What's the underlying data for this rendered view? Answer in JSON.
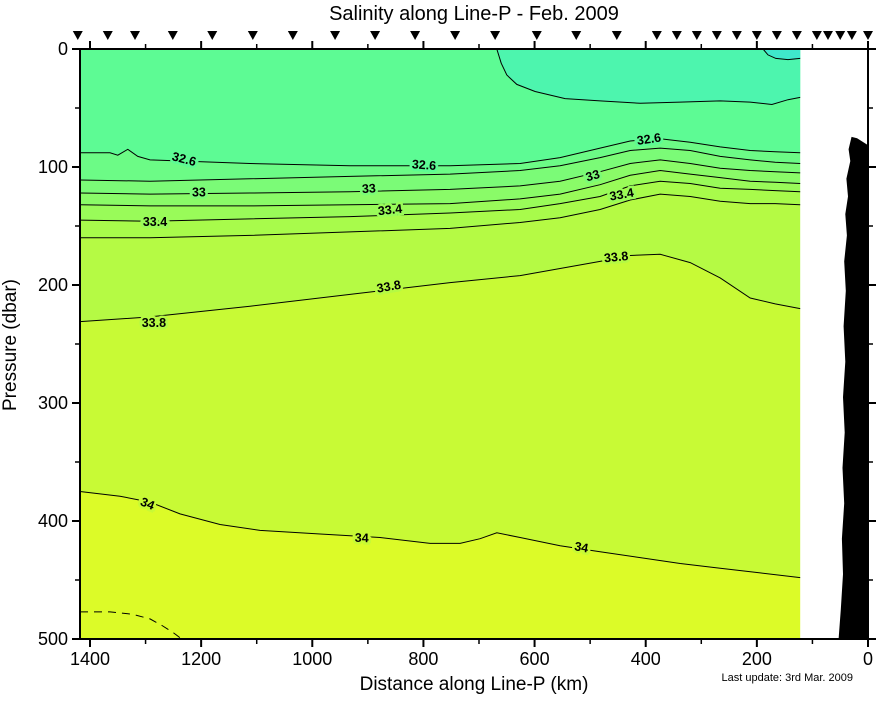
{
  "chart_data": {
    "type": "filled-contour-section",
    "title": "Salinity along Line-P - Feb. 2009",
    "xlabel": "Distance along Line-P (km)",
    "ylabel": "Pressure (dbar)",
    "attribution": "Last update: 3rd Mar. 2009",
    "contour_interval": 0.2,
    "labeled_levels": [
      32.6,
      33,
      33.4,
      33.8,
      34
    ],
    "x_axis": {
      "unit": "km",
      "min": 0,
      "max": 1418,
      "reversed": true,
      "major_ticks": [
        1400,
        1200,
        1000,
        800,
        600,
        400,
        200,
        0
      ],
      "minor_ticks": [
        1300,
        1100,
        900,
        700,
        500,
        300,
        100
      ]
    },
    "y_axis": {
      "unit": "dbar",
      "min": 0,
      "max": 500,
      "inverted": true,
      "major_ticks": [
        0,
        100,
        200,
        300,
        400,
        500
      ],
      "minor_ticks": [
        50,
        150,
        250,
        350,
        450
      ]
    },
    "fill_extent_km": [
      122,
      1418
    ],
    "station_markers_km": [
      1422,
      1368,
      1319,
      1251,
      1180,
      1107,
      1035,
      959,
      887,
      815,
      743,
      671,
      596,
      525,
      452,
      380,
      344,
      308,
      272,
      236,
      200,
      164,
      128,
      92,
      72,
      50,
      29,
      0
    ],
    "lines": {
      "surface": {
        "stroke": false,
        "points": [
          [
            1418,
            0
          ],
          [
            122,
            0
          ]
        ]
      },
      "32.6": {
        "stroke": true,
        "dashed": false,
        "points": [
          [
            1418,
            88
          ],
          [
            1364,
            88
          ],
          [
            1350,
            90
          ],
          [
            1332,
            85
          ],
          [
            1314,
            91
          ],
          [
            1292,
            94
          ],
          [
            1112,
            97
          ],
          [
            932,
            99
          ],
          [
            752,
            99
          ],
          [
            626,
            97
          ],
          [
            554,
            92
          ],
          [
            482,
            84
          ],
          [
            428,
            78
          ],
          [
            374,
            76
          ],
          [
            320,
            79
          ],
          [
            266,
            83
          ],
          [
            212,
            86
          ],
          [
            167,
            87
          ],
          [
            122,
            88
          ]
        ]
      },
      "32.8": {
        "stroke": true,
        "dashed": false,
        "points": [
          [
            1418,
            111
          ],
          [
            1292,
            112
          ],
          [
            1112,
            110
          ],
          [
            932,
            108
          ],
          [
            752,
            106
          ],
          [
            626,
            103
          ],
          [
            554,
            99
          ],
          [
            482,
            92
          ],
          [
            428,
            86
          ],
          [
            374,
            84
          ],
          [
            320,
            86
          ],
          [
            266,
            91
          ],
          [
            212,
            94
          ],
          [
            167,
            96
          ],
          [
            122,
            97
          ]
        ]
      },
      "33": {
        "stroke": true,
        "dashed": false,
        "points": [
          [
            1418,
            122
          ],
          [
            1292,
            123
          ],
          [
            1112,
            122
          ],
          [
            932,
            121
          ],
          [
            752,
            119
          ],
          [
            626,
            116
          ],
          [
            554,
            112
          ],
          [
            482,
            104
          ],
          [
            428,
            97
          ],
          [
            374,
            94
          ],
          [
            320,
            97
          ],
          [
            266,
            101
          ],
          [
            212,
            103
          ],
          [
            167,
            104
          ],
          [
            122,
            105
          ]
        ]
      },
      "33.2": {
        "stroke": true,
        "dashed": false,
        "points": [
          [
            1418,
            132
          ],
          [
            1292,
            133
          ],
          [
            1112,
            133
          ],
          [
            932,
            132
          ],
          [
            752,
            131
          ],
          [
            626,
            127
          ],
          [
            554,
            123
          ],
          [
            482,
            115
          ],
          [
            428,
            107
          ],
          [
            374,
            103
          ],
          [
            320,
            106
          ],
          [
            266,
            109
          ],
          [
            212,
            112
          ],
          [
            167,
            113
          ],
          [
            122,
            114
          ]
        ]
      },
      "33.4": {
        "stroke": true,
        "dashed": false,
        "points": [
          [
            1418,
            145
          ],
          [
            1292,
            146
          ],
          [
            1112,
            144
          ],
          [
            932,
            142
          ],
          [
            752,
            139
          ],
          [
            626,
            136
          ],
          [
            554,
            131
          ],
          [
            482,
            125
          ],
          [
            428,
            116
          ],
          [
            374,
            112
          ],
          [
            320,
            114
          ],
          [
            266,
            118
          ],
          [
            212,
            119
          ],
          [
            167,
            120
          ],
          [
            122,
            121
          ]
        ]
      },
      "33.6": {
        "stroke": true,
        "dashed": false,
        "points": [
          [
            1418,
            160
          ],
          [
            1292,
            160
          ],
          [
            1112,
            158
          ],
          [
            932,
            155
          ],
          [
            752,
            152
          ],
          [
            626,
            147
          ],
          [
            554,
            143
          ],
          [
            482,
            136
          ],
          [
            428,
            128
          ],
          [
            374,
            123
          ],
          [
            320,
            125
          ],
          [
            266,
            129
          ],
          [
            212,
            131
          ],
          [
            167,
            131
          ],
          [
            122,
            132
          ]
        ]
      },
      "33.8": {
        "stroke": true,
        "dashed": false,
        "points": [
          [
            1418,
            231
          ],
          [
            1292,
            227
          ],
          [
            1112,
            218
          ],
          [
            932,
            208
          ],
          [
            752,
            198
          ],
          [
            626,
            192
          ],
          [
            554,
            186
          ],
          [
            482,
            180
          ],
          [
            428,
            175
          ],
          [
            374,
            174
          ],
          [
            320,
            181
          ],
          [
            266,
            194
          ],
          [
            212,
            211
          ],
          [
            167,
            216
          ],
          [
            122,
            220
          ]
        ]
      },
      "34": {
        "stroke": true,
        "dashed": false,
        "points": [
          [
            1418,
            375
          ],
          [
            1346,
            379
          ],
          [
            1292,
            384
          ],
          [
            1238,
            394
          ],
          [
            1166,
            403
          ],
          [
            1094,
            408
          ],
          [
            986,
            411
          ],
          [
            878,
            414
          ],
          [
            788,
            419
          ],
          [
            734,
            419
          ],
          [
            698,
            415
          ],
          [
            668,
            410
          ],
          [
            626,
            414
          ],
          [
            554,
            421
          ],
          [
            482,
            426
          ],
          [
            410,
            431
          ],
          [
            338,
            436
          ],
          [
            266,
            440
          ],
          [
            194,
            444
          ],
          [
            122,
            448
          ]
        ]
      },
      "34.2-dashed": {
        "stroke": true,
        "dashed": true,
        "points": [
          [
            1418,
            477
          ],
          [
            1364,
            477
          ],
          [
            1324,
            479
          ],
          [
            1292,
            483
          ],
          [
            1269,
            489
          ],
          [
            1249,
            495
          ],
          [
            1235,
            500
          ]
        ]
      },
      "floor": {
        "stroke": false,
        "points": [
          [
            1418,
            500
          ],
          [
            122,
            500
          ]
        ]
      }
    },
    "bands": [
      {
        "upper": "surface",
        "lower": "32.6",
        "label": "lt-32.6",
        "color": "#5DFB94"
      },
      {
        "upper": "32.6",
        "lower": "32.8",
        "label": "32.6-32.8",
        "color": "#6CFB86"
      },
      {
        "upper": "32.8",
        "lower": "33",
        "label": "32.8-33",
        "color": "#7BFB77"
      },
      {
        "upper": "33",
        "lower": "33.2",
        "label": "33-33.2",
        "color": "#8AFB68"
      },
      {
        "upper": "33.2",
        "lower": "33.4",
        "label": "33.2-33.4",
        "color": "#99FB59"
      },
      {
        "upper": "33.4",
        "lower": "33.6",
        "label": "33.4-33.6",
        "color": "#A8FB4B"
      },
      {
        "upper": "33.6",
        "lower": "33.8",
        "label": "33.6-33.8",
        "color": "#B5FA44"
      },
      {
        "upper": "33.8",
        "lower": "34",
        "label": "33.8-34",
        "color": "#C8FA35"
      },
      {
        "upper": "34",
        "lower": "floor",
        "label": "gt-34",
        "color": "#DCFB28"
      }
    ],
    "fresh_regions": [
      {
        "name": "surface-fresh-pool",
        "color": "#4DF5AE",
        "boundary": [
          [
            668,
            0
          ],
          [
            660,
            12
          ],
          [
            650,
            22
          ],
          [
            632,
            30
          ],
          [
            599,
            36
          ],
          [
            545,
            42
          ],
          [
            482,
            44
          ],
          [
            410,
            46
          ],
          [
            338,
            45
          ],
          [
            266,
            44
          ],
          [
            212,
            45
          ],
          [
            173,
            47
          ],
          [
            144,
            43
          ],
          [
            122,
            41
          ]
        ],
        "close": [
          [
            122,
            0
          ]
        ]
      },
      {
        "name": "surface-fresh-corner",
        "color": "#3FE8CC",
        "boundary": [
          [
            189,
            0
          ],
          [
            180,
            5
          ],
          [
            166,
            8
          ],
          [
            144,
            9
          ],
          [
            122,
            8
          ]
        ],
        "close": [
          [
            122,
            0
          ]
        ]
      }
    ],
    "contour_labels": [
      {
        "text": "32.6",
        "d": 1231,
        "p": 94,
        "rot": 15,
        "halo": "#5DFB94"
      },
      {
        "text": "32.6",
        "d": 799,
        "p": 99,
        "rot": 4,
        "halo": "#5DFB94"
      },
      {
        "text": "32.6",
        "d": 394,
        "p": 77,
        "rot": -8,
        "halo": "#5DFB94"
      },
      {
        "text": "33",
        "d": 1204,
        "p": 122,
        "rot": 0,
        "halo": "#7BFB77"
      },
      {
        "text": "33",
        "d": 898,
        "p": 119,
        "rot": -4,
        "halo": "#7BFB77"
      },
      {
        "text": "33",
        "d": 495,
        "p": 108,
        "rot": -16,
        "halo": "#7BFB77"
      },
      {
        "text": "33.4",
        "d": 1283,
        "p": 147,
        "rot": 0,
        "halo": "#99FB59"
      },
      {
        "text": "33.4",
        "d": 860,
        "p": 137,
        "rot": -6,
        "halo": "#99FB59"
      },
      {
        "text": "33.4",
        "d": 443,
        "p": 124,
        "rot": -10,
        "halo": "#99FB59"
      },
      {
        "text": "33.8",
        "d": 1285,
        "p": 233,
        "rot": 0,
        "halo": "#B5FA44"
      },
      {
        "text": "33.8",
        "d": 862,
        "p": 202,
        "rot": -10,
        "halo": "#B5FA44"
      },
      {
        "text": "33.8",
        "d": 453,
        "p": 177,
        "rot": -6,
        "halo": "#B5FA44"
      },
      {
        "text": "34",
        "d": 1297,
        "p": 386,
        "rot": 22,
        "halo": "#C8FA35"
      },
      {
        "text": "34",
        "d": 911,
        "p": 415,
        "rot": 2,
        "halo": "#C8FA35"
      },
      {
        "text": "34",
        "d": 516,
        "p": 423,
        "rot": 10,
        "halo": "#C8FA35"
      }
    ],
    "bathymetry_profile": [
      [
        29,
        75
      ],
      [
        34,
        85
      ],
      [
        31,
        95
      ],
      [
        38,
        110
      ],
      [
        35,
        125
      ],
      [
        40,
        140
      ],
      [
        37,
        158
      ],
      [
        42,
        180
      ],
      [
        39,
        205
      ],
      [
        43,
        235
      ],
      [
        40,
        265
      ],
      [
        44,
        295
      ],
      [
        41,
        325
      ],
      [
        45,
        355
      ],
      [
        42,
        385
      ],
      [
        46,
        415
      ],
      [
        44,
        445
      ],
      [
        48,
        475
      ],
      [
        52,
        500
      ],
      [
        0,
        500
      ],
      [
        0,
        82
      ],
      [
        20,
        76
      ]
    ]
  }
}
